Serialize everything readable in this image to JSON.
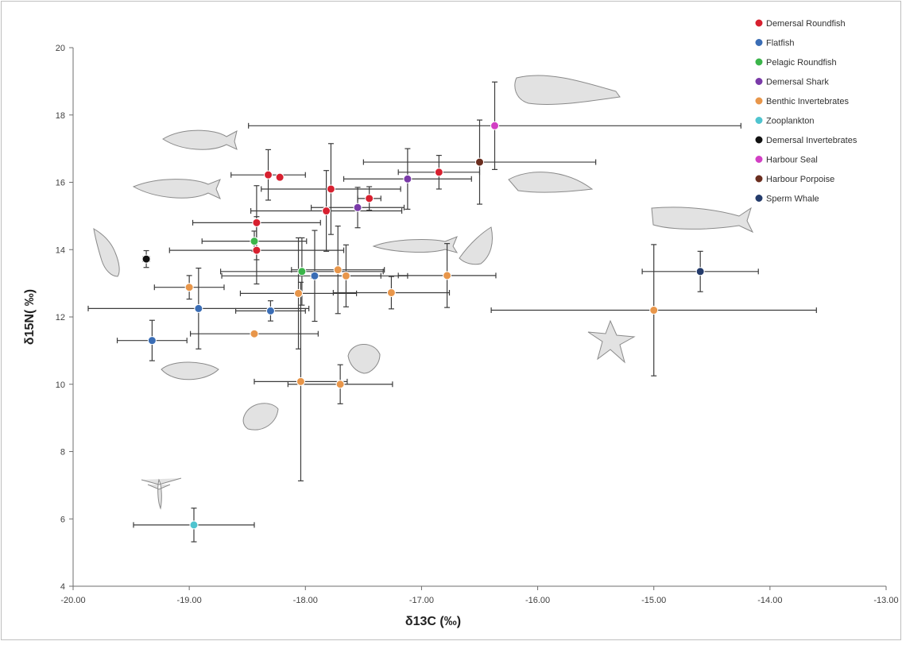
{
  "chart_data": {
    "type": "scatter",
    "xlabel": "δ13C (‰)",
    "ylabel": "δ15N( ‰)",
    "xlim": [
      -20,
      -13
    ],
    "ylim": [
      4,
      20
    ],
    "x_ticks": [
      "-20.00",
      "-19.00",
      "-18.00",
      "-17.00",
      "-16.00",
      "-15.00",
      "-14.00",
      "-13.00"
    ],
    "y_ticks": [
      "4",
      "6",
      "8",
      "10",
      "12",
      "14",
      "16",
      "18",
      "20"
    ],
    "grid": false,
    "legend_position": "top-right",
    "series": [
      {
        "name": "Demersal Roundfish",
        "color": "#d7202f",
        "points": [
          {
            "x": -18.32,
            "y": 16.22,
            "xerr": 0.32,
            "yerr": 0.75
          },
          {
            "x": -18.22,
            "y": 16.15,
            "xerr": 0.0,
            "yerr": 0.0
          },
          {
            "x": -17.78,
            "y": 15.8,
            "xerr": 0.6,
            "yerr": 1.35
          },
          {
            "x": -17.82,
            "y": 15.15,
            "xerr": 0.65,
            "yerr": 1.2
          },
          {
            "x": -17.45,
            "y": 15.52,
            "xerr": 0.1,
            "yerr": 0.35
          },
          {
            "x": -16.85,
            "y": 16.3,
            "xerr": 0.35,
            "yerr": 0.5
          },
          {
            "x": -18.42,
            "y": 14.8,
            "xerr": 0.55,
            "yerr": 1.1
          },
          {
            "x": -18.42,
            "y": 13.98,
            "xerr": 0.75,
            "yerr": 1.0
          }
        ]
      },
      {
        "name": "Flatfish",
        "color": "#3a6db5",
        "points": [
          {
            "x": -19.32,
            "y": 11.3,
            "xerr": 0.3,
            "yerr": 0.6
          },
          {
            "x": -18.92,
            "y": 12.25,
            "xerr": 0.95,
            "yerr": 1.2
          },
          {
            "x": -18.3,
            "y": 12.18,
            "xerr": 0.3,
            "yerr": 0.3
          },
          {
            "x": -17.92,
            "y": 13.22,
            "xerr": 0.8,
            "yerr": 1.35
          }
        ]
      },
      {
        "name": "Pelagic Roundfish",
        "color": "#3bb54a",
        "points": [
          {
            "x": -18.44,
            "y": 14.25,
            "xerr": 0.45,
            "yerr": 0.3
          },
          {
            "x": -18.03,
            "y": 13.35,
            "xerr": 0.7,
            "yerr": 1.0
          }
        ]
      },
      {
        "name": "Demersal Shark",
        "color": "#7a3aa8",
        "points": [
          {
            "x": -17.12,
            "y": 16.1,
            "xerr": 0.55,
            "yerr": 0.9
          },
          {
            "x": -17.55,
            "y": 15.25,
            "xerr": 0.4,
            "yerr": 0.6
          }
        ]
      },
      {
        "name": "Benthic Invertebrates",
        "color": "#e8964a",
        "points": [
          {
            "x": -19.0,
            "y": 12.88,
            "xerr": 0.3,
            "yerr": 0.35
          },
          {
            "x": -18.44,
            "y": 11.5,
            "xerr": 0.55,
            "yerr": 0.0
          },
          {
            "x": -18.06,
            "y": 12.7,
            "xerr": 0.5,
            "yerr": 1.65
          },
          {
            "x": -18.04,
            "y": 10.08,
            "xerr": 0.4,
            "yerr": 2.95
          },
          {
            "x": -17.72,
            "y": 13.4,
            "xerr": 0.4,
            "yerr": 1.3
          },
          {
            "x": -17.65,
            "y": 13.22,
            "xerr": 0.3,
            "yerr": 0.92
          },
          {
            "x": -17.7,
            "y": 10.0,
            "xerr": 0.45,
            "yerr": 0.58
          },
          {
            "x": -17.26,
            "y": 12.72,
            "xerr": 0.5,
            "yerr": 0.48
          },
          {
            "x": -16.78,
            "y": 13.23,
            "xerr": 0.42,
            "yerr": 0.95
          },
          {
            "x": -15.0,
            "y": 12.2,
            "xerr": 1.4,
            "yerr": 1.95
          }
        ]
      },
      {
        "name": "Zooplankton",
        "color": "#4fc4cf",
        "points": [
          {
            "x": -18.96,
            "y": 5.82,
            "xerr": 0.52,
            "yerr": 0.5
          }
        ]
      },
      {
        "name": "Demersal Invertebrates",
        "color": "#111111",
        "points": [
          {
            "x": -19.37,
            "y": 13.72,
            "xerr": 0.03,
            "yerr": 0.25
          }
        ]
      },
      {
        "name": "Harbour Seal",
        "color": "#d23fc4",
        "points": [
          {
            "x": -16.37,
            "y": 17.68,
            "xerr": 2.12,
            "yerr": 1.3
          }
        ]
      },
      {
        "name": "Harbour Porpoise",
        "color": "#6b2e1f",
        "points": [
          {
            "x": -16.5,
            "y": 16.6,
            "xerr": 1.0,
            "yerr": 1.25
          }
        ]
      },
      {
        "name": "Sperm Whale",
        "color": "#243b6b",
        "points": [
          {
            "x": -14.6,
            "y": 13.35,
            "xerr": 0.5,
            "yerr": 0.6
          }
        ]
      }
    ]
  }
}
